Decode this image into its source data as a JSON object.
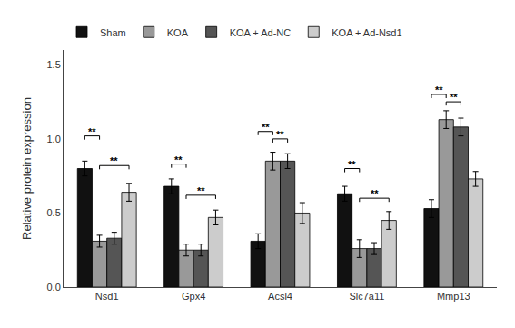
{
  "chart_data": {
    "type": "bar",
    "categories": [
      "Nsd1",
      "Gpx4",
      "Acsl4",
      "Slc7a11",
      "Mmp13"
    ],
    "series": [
      {
        "name": "Sham",
        "color": "#111111",
        "values": [
          0.8,
          0.68,
          0.31,
          0.63,
          0.53
        ],
        "errors": [
          0.05,
          0.05,
          0.05,
          0.05,
          0.06
        ]
      },
      {
        "name": "KOA",
        "color": "#999999",
        "values": [
          0.31,
          0.25,
          0.85,
          0.26,
          1.13
        ],
        "errors": [
          0.04,
          0.04,
          0.06,
          0.06,
          0.06
        ]
      },
      {
        "name": "KOA + Ad-NC",
        "color": "#555555",
        "values": [
          0.33,
          0.25,
          0.85,
          0.26,
          1.08
        ],
        "errors": [
          0.04,
          0.04,
          0.05,
          0.04,
          0.06
        ]
      },
      {
        "name": "KOA + Ad-Nsd1",
        "color": "#cccccc",
        "values": [
          0.64,
          0.47,
          0.5,
          0.45,
          0.73
        ],
        "errors": [
          0.06,
          0.05,
          0.07,
          0.06,
          0.05
        ]
      }
    ],
    "ylabel": "Relative protein expression",
    "ylim": [
      0.0,
      1.6
    ],
    "yticks": [
      {
        "value": 0.0,
        "label": "0.0"
      },
      0.5,
      {
        "value": 1.0,
        "label": "1.0"
      },
      1.5
    ],
    "grid": false,
    "legend": "top",
    "annotations": [
      {
        "category": "Nsd1",
        "series": [
          "Sham",
          "KOA"
        ],
        "y": 1.02,
        "text": "**"
      },
      {
        "category": "Nsd1",
        "series": [
          "KOA",
          "KOA + Ad-Nsd1"
        ],
        "y": 0.82,
        "text": "**"
      },
      {
        "category": "Gpx4",
        "series": [
          "Sham",
          "KOA"
        ],
        "y": 0.83,
        "text": "**"
      },
      {
        "category": "Gpx4",
        "series": [
          "KOA",
          "KOA + Ad-Nsd1"
        ],
        "y": 0.62,
        "text": "**"
      },
      {
        "category": "Acsl4",
        "series": [
          "Sham",
          "KOA"
        ],
        "y": 1.05,
        "text": "**"
      },
      {
        "category": "Acsl4",
        "series": [
          "KOA",
          "KOA + Ad-NC"
        ],
        "y": 1.0,
        "text": "**"
      },
      {
        "category": "Slc7a11",
        "series": [
          "Sham",
          "KOA"
        ],
        "y": 0.8,
        "text": "**"
      },
      {
        "category": "Slc7a11",
        "series": [
          "KOA",
          "KOA + Ad-Nsd1"
        ],
        "y": 0.6,
        "text": "**"
      },
      {
        "category": "Mmp13",
        "series": [
          "Sham",
          "KOA"
        ],
        "y": 1.3,
        "text": "**"
      },
      {
        "category": "Mmp13",
        "series": [
          "KOA",
          "KOA + Ad-NC"
        ],
        "y": 1.25,
        "text": "**"
      }
    ]
  }
}
